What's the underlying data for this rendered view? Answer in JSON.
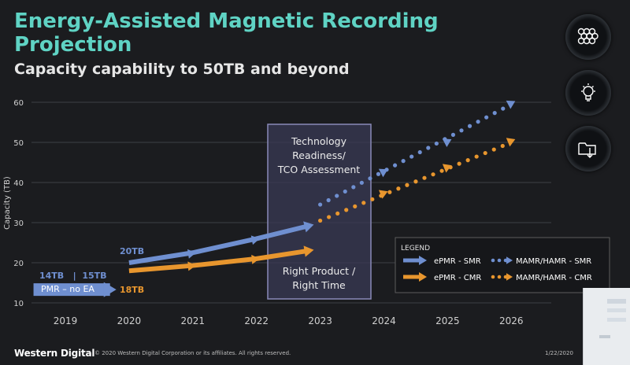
{
  "header": {
    "title": "Energy-Assisted Magnetic Recording Projection",
    "subtitle": "Capacity capability to 50TB and beyond"
  },
  "icons": [
    "storage-array-icon",
    "lightbulb-icon",
    "folder-download-icon"
  ],
  "chart_data": {
    "type": "line",
    "ylabel": "Capacity (TB)",
    "xlabel": "",
    "ylim": [
      10,
      60
    ],
    "yticks": [
      10,
      20,
      30,
      40,
      50,
      60
    ],
    "xticks": [
      "2019",
      "2020",
      "2021",
      "2022",
      "2023",
      "2024",
      "2025",
      "2026"
    ],
    "grid": "horizontal",
    "series": [
      {
        "name": "ePMR - SMR",
        "color": "#6f8fd0",
        "style": "solid-arrow",
        "points": [
          [
            2020,
            20
          ],
          [
            2021,
            22.5
          ],
          [
            2022,
            26
          ],
          [
            2022.9,
            29.5
          ]
        ]
      },
      {
        "name": "ePMR - CMR",
        "color": "#e8962e",
        "style": "solid-arrow",
        "points": [
          [
            2020,
            18
          ],
          [
            2021,
            19.3
          ],
          [
            2022,
            21
          ],
          [
            2022.9,
            23.2
          ]
        ]
      },
      {
        "name": "MAMR/HAMR - SMR",
        "color": "#6f8fd0",
        "style": "dotted-arrow",
        "points": [
          [
            2023,
            34.5
          ],
          [
            2024,
            42.5
          ],
          [
            2025,
            50
          ],
          [
            2026,
            59.5
          ]
        ]
      },
      {
        "name": "MAMR/HAMR - CMR",
        "color": "#e8962e",
        "style": "dotted-arrow",
        "points": [
          [
            2023,
            30.5
          ],
          [
            2024,
            37
          ],
          [
            2025,
            43.5
          ],
          [
            2026,
            50
          ]
        ]
      },
      {
        "name": "PMR – no EA",
        "color": "#6f8fd0",
        "style": "solid-arrow",
        "points": [
          [
            2018.5,
            13.3
          ],
          [
            2019.8,
            13.3
          ]
        ]
      }
    ],
    "annotations": {
      "label_20tb": "20TB",
      "label_18tb": "18TB",
      "label_pmr_caps": "14TB   |  15TB",
      "label_pmr": "PMR – no EA",
      "box_top": "Technology Readiness/ TCO Assessment",
      "box_bottom": "Right Product / Right Time"
    },
    "legend": {
      "title": "LEGEND",
      "placement": "bottom-right",
      "entries": [
        {
          "name": "ePMR - SMR",
          "color": "#6f8fd0",
          "style": "solid"
        },
        {
          "name": "MAMR/HAMR - SMR",
          "color": "#6f8fd0",
          "style": "dotted"
        },
        {
          "name": "ePMR - CMR",
          "color": "#e8962e",
          "style": "solid"
        },
        {
          "name": "MAMR/HAMR - CMR",
          "color": "#e8962e",
          "style": "dotted"
        }
      ]
    }
  },
  "footer": {
    "logo": "Western Digital",
    "copyright": "© 2020 Western Digital Corporation or its affiliates. All rights reserved.",
    "date": "1/22/2020"
  }
}
